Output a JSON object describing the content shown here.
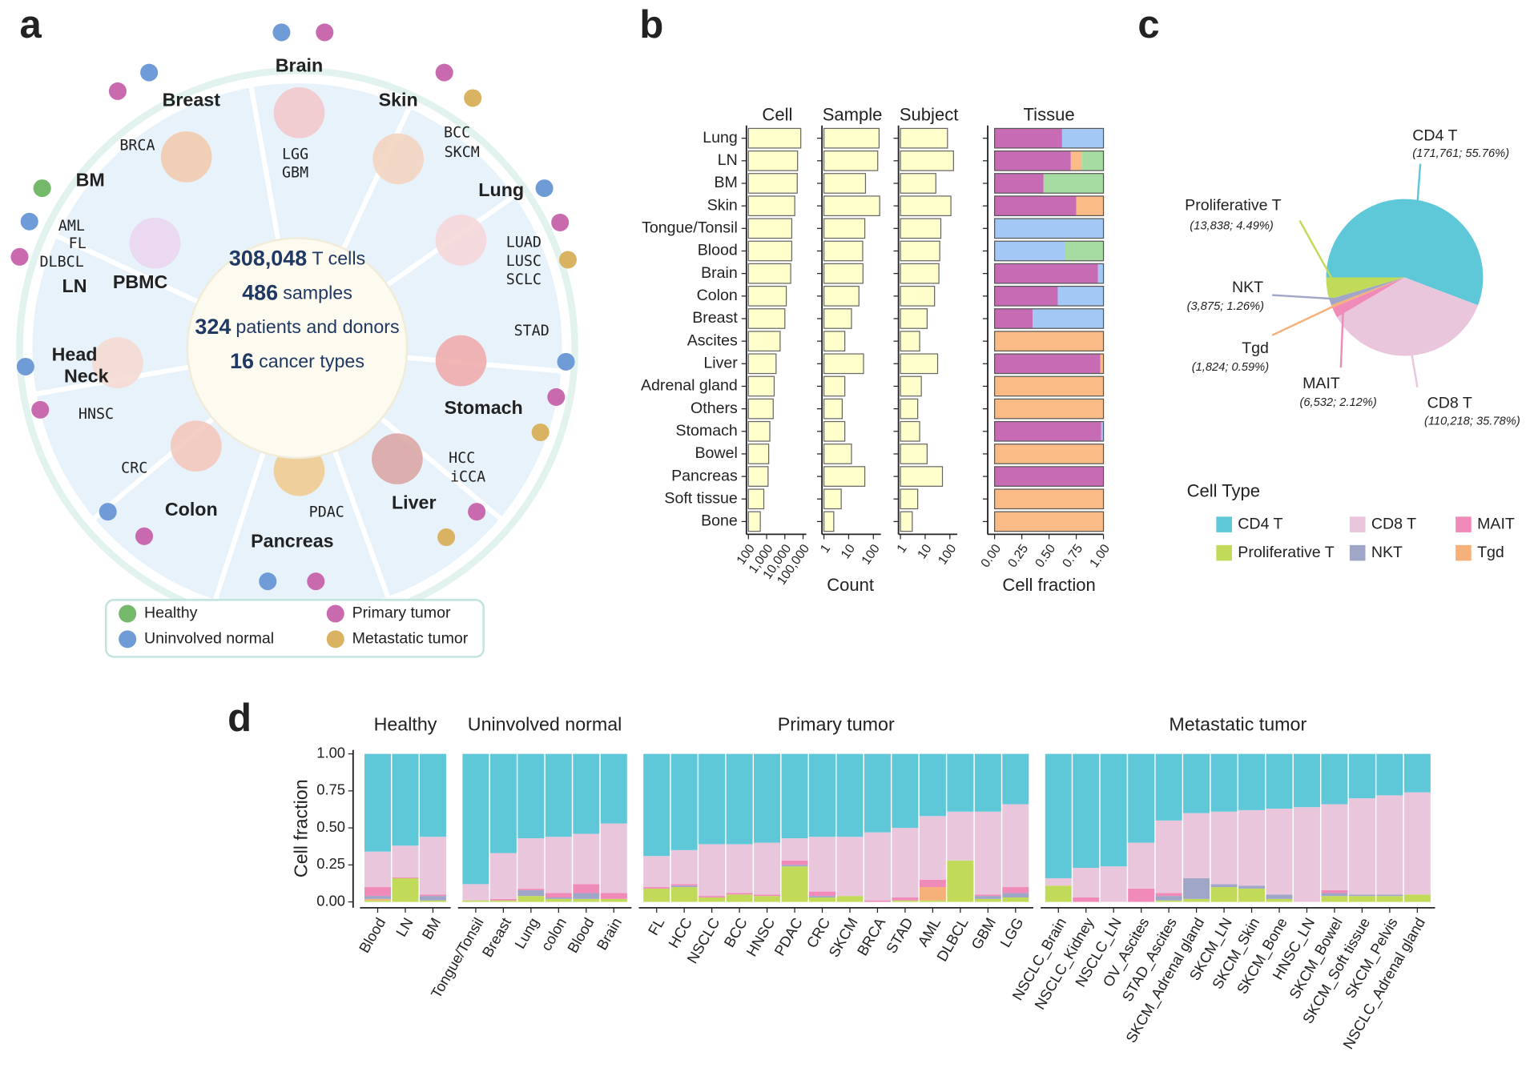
{
  "panel_labels": [
    "a",
    "b",
    "c",
    "d"
  ],
  "diagram": {
    "center_lines": [
      {
        "bold": "308,048",
        "text": "T cells"
      },
      {
        "bold": "486",
        "text": "samples"
      },
      {
        "bold": "324",
        "text": "patients and donors"
      },
      {
        "bold": "16",
        "text": "cancer types"
      }
    ],
    "segments": [
      {
        "names": [
          "Brain"
        ],
        "codes": [
          "LGG",
          "GBM"
        ]
      },
      {
        "names": [
          "Skin"
        ],
        "codes": [
          "BCC",
          "SKCM"
        ]
      },
      {
        "names": [
          "Lung"
        ],
        "codes": [
          "LUAD",
          "LUSC",
          "SCLC"
        ]
      },
      {
        "names": [
          "Stomach"
        ],
        "codes": [
          "STAD"
        ]
      },
      {
        "names": [
          "Liver"
        ],
        "codes": [
          "HCC",
          "iCCA"
        ]
      },
      {
        "names": [
          "Pancreas"
        ],
        "codes": [
          "PDAC"
        ]
      },
      {
        "names": [
          "Colon"
        ],
        "codes": [
          "CRC"
        ]
      },
      {
        "names": [
          "Head",
          "Neck"
        ],
        "codes": [
          "HNSC"
        ]
      },
      {
        "names": [
          "BM",
          "PBMC",
          "LN"
        ],
        "codes": [
          "AML",
          "FL",
          "DLBCL"
        ]
      },
      {
        "names": [
          "Breast"
        ],
        "codes": [
          "BRCA"
        ]
      }
    ]
  },
  "chart_data": [
    {
      "type": "bar",
      "title": "Cell",
      "categories": [
        "Lung",
        "LN",
        "BM",
        "Skin",
        "Tongue/Tonsil",
        "Blood",
        "Brain",
        "Colon",
        "Breast",
        "Ascites",
        "Liver",
        "Adrenal gland",
        "Others",
        "Stomach",
        "Bowel",
        "Pancreas",
        "Soft tissue",
        "Bone"
      ],
      "values": [
        75000,
        50000,
        48000,
        35000,
        24000,
        24000,
        21000,
        12000,
        10000,
        5500,
        3300,
        2600,
        2300,
        1500,
        1300,
        1200,
        700,
        450
      ],
      "log_x": true,
      "xlim": [
        100,
        150000
      ],
      "xticks": [
        100,
        {
          "value": 1000,
          "label": "1,000"
        },
        {
          "value": 10000,
          "label": "10,000"
        },
        {
          "value": 100000,
          "label": "100,000"
        }
      ],
      "color": "#ffffcc"
    },
    {
      "type": "bar",
      "title": "Sample",
      "x_label": "Count",
      "values": [
        170,
        150,
        48,
        180,
        45,
        37,
        38,
        26,
        13,
        7,
        40,
        7,
        5.5,
        7,
        13,
        45,
        5,
        2.5
      ],
      "log_x": true,
      "xlim": [
        1,
        200
      ],
      "xticks": [
        1,
        10,
        100
      ],
      "color": "#ffffcc"
    },
    {
      "type": "bar",
      "title": "Subject",
      "values": [
        80,
        140,
        27,
        110,
        43,
        39,
        36,
        24,
        12,
        6,
        32,
        7,
        5,
        6,
        12,
        50,
        5,
        3
      ],
      "log_x": true,
      "xlim": [
        1,
        200
      ],
      "xticks": [
        1,
        10,
        100
      ],
      "color": "#ffffcc"
    },
    {
      "type": "stacked_bar",
      "title": "Tissue",
      "x_label": "Cell fraction",
      "xlim": [
        0,
        1
      ],
      "xticks": [
        {
          "value": 0,
          "label": "0.00"
        },
        {
          "value": 0.25,
          "label": "0.25"
        },
        {
          "value": 0.5,
          "label": "0.50"
        },
        {
          "value": 0.75,
          "label": "0.75"
        },
        {
          "value": 1,
          "label": "1.00"
        }
      ],
      "series": [
        {
          "name": "Primary tumor",
          "color": "#c86bb5",
          "legend_color": "#c96aae",
          "values": [
            0.62,
            0.7,
            0.45,
            0.75,
            0,
            0,
            0.95,
            0.58,
            0.35,
            0,
            0.97,
            0,
            0,
            0.98,
            0,
            1,
            0,
            0
          ]
        },
        {
          "name": "Metastatic tumor",
          "color": "#fbbb86",
          "legend_color": "#d9b362",
          "values": [
            0,
            0.1,
            0,
            0.25,
            0,
            0,
            0,
            0,
            0,
            1,
            0.03,
            1,
            1,
            0,
            1,
            0,
            1,
            1
          ]
        },
        {
          "name": "Uninvolved normal",
          "color": "#a3c8f5",
          "legend_color": "#6f9bd6",
          "values": [
            0.38,
            0,
            0,
            0,
            1,
            0.65,
            0.05,
            0.42,
            0.65,
            0,
            0,
            0,
            0,
            0.02,
            0,
            0,
            0,
            0
          ]
        },
        {
          "name": "Healthy",
          "color": "#a6dca2",
          "legend_color": "#74b86a",
          "values": [
            0,
            0.2,
            0.55,
            0,
            0,
            0.35,
            0,
            0,
            0,
            0,
            0,
            0,
            0,
            0,
            0,
            0,
            0,
            0
          ]
        }
      ]
    },
    {
      "type": "pie",
      "legend_title": "Cell Type",
      "categories": [
        "CD4 T",
        "CD8 T",
        "MAIT",
        "Tgd",
        "NKT",
        "Proliferative T"
      ],
      "values": [
        55.76,
        35.78,
        2.12,
        0.59,
        1.26,
        4.49
      ],
      "value_labels": [
        "(171,761; 55.76%)",
        "(110,218; 35.78%)",
        "(6,532; 2.12%)",
        "(1,824; 0.59%)",
        "(3,875; 1.26%)",
        "(13,838; 4.49%)"
      ],
      "colors": [
        "#5ec8d8",
        "#eac6dd",
        "#f08ab8",
        "#f6b07a",
        "#9fa6c8",
        "#c2da5a"
      ]
    },
    {
      "type": "stacked_bar",
      "y_label": "Cell fraction",
      "ylim": [
        0,
        1
      ],
      "yticks": [
        {
          "value": 0,
          "label": "0.00"
        },
        {
          "value": 0.25,
          "label": "0.25"
        },
        {
          "value": 0.5,
          "label": "0.50"
        },
        {
          "value": 0.75,
          "label": "0.75"
        },
        {
          "value": 1,
          "label": "1.00"
        }
      ],
      "facets": [
        {
          "title": "Healthy",
          "categories": [
            "Blood",
            "LN",
            "BM"
          ],
          "values": [
            [
              0.66,
              0.24,
              0.06,
              0.01,
              0.02,
              0.01
            ],
            [
              0.62,
              0.215,
              0.005,
              0,
              0,
              0.16
            ],
            [
              0.56,
              0.39,
              0.01,
              0,
              0.03,
              0.01
            ]
          ]
        },
        {
          "title": "Uninvolved normal",
          "categories": [
            "Tongue/Tonsil",
            "Breast",
            "Lung",
            "colon",
            "Blood",
            "Brain"
          ],
          "values": [
            [
              0.88,
              0.11,
              0,
              0,
              0,
              0.01
            ],
            [
              0.67,
              0.31,
              0.01,
              0,
              0,
              0.01
            ],
            [
              0.57,
              0.34,
              0.01,
              0,
              0.04,
              0.04
            ],
            [
              0.56,
              0.38,
              0.03,
              0,
              0.01,
              0.02
            ],
            [
              0.54,
              0.34,
              0.06,
              0,
              0.04,
              0.02
            ],
            [
              0.47,
              0.47,
              0.04,
              0,
              0,
              0.02
            ]
          ]
        },
        {
          "title": "Primary tumor",
          "categories": [
            "FL",
            "HCC",
            "NSCLC",
            "BCC",
            "HNSC",
            "PDAC",
            "CRC",
            "SKCM",
            "BRCA",
            "STAD",
            "AML",
            "DLBCL",
            "GBM",
            "LGG"
          ],
          "values": [
            [
              0.69,
              0.21,
              0.01,
              0,
              0,
              0.09
            ],
            [
              0.65,
              0.23,
              0.01,
              0,
              0.01,
              0.1
            ],
            [
              0.61,
              0.35,
              0.01,
              0,
              0,
              0.03
            ],
            [
              0.61,
              0.33,
              0.01,
              0,
              0,
              0.05
            ],
            [
              0.6,
              0.35,
              0.01,
              0,
              0,
              0.04
            ],
            [
              0.57,
              0.15,
              0.03,
              0,
              0.01,
              0.24
            ],
            [
              0.56,
              0.37,
              0.03,
              0,
              0.01,
              0.03
            ],
            [
              0.56,
              0.4,
              0,
              0,
              0,
              0.04
            ],
            [
              0.53,
              0.46,
              0.01,
              0,
              0,
              0
            ],
            [
              0.5,
              0.47,
              0.02,
              0,
              0,
              0.01
            ],
            [
              0.42,
              0.43,
              0.05,
              0.09,
              0,
              0.01
            ],
            [
              0.39,
              0.33,
              0,
              0,
              0,
              0.28
            ],
            [
              0.39,
              0.56,
              0.01,
              0,
              0.02,
              0.02
            ],
            [
              0.34,
              0.56,
              0.04,
              0,
              0.03,
              0.03
            ]
          ]
        },
        {
          "title": "Metastatic tumor",
          "categories": [
            "NSCLC_Brain",
            "NSCLC_Kidney",
            "NSCLC_LN",
            "OV_Ascites",
            "STAD_Ascites",
            "SKCM_Adrenal gland",
            "SKCM_LN",
            "SKCM_Skin",
            "SKCM_Bone",
            "HNSC_LN",
            "SKCM_Bowel",
            "SKCM_Soft tissue",
            "SKCM_Pelvis",
            "NSCLC_Adrenal gland"
          ],
          "values": [
            [
              0.84,
              0.05,
              0,
              0,
              0,
              0.11
            ],
            [
              0.77,
              0.2,
              0.03,
              0,
              0,
              0
            ],
            [
              0.76,
              0.24,
              0,
              0,
              0,
              0
            ],
            [
              0.6,
              0.31,
              0.09,
              0,
              0,
              0
            ],
            [
              0.45,
              0.49,
              0.02,
              0,
              0.03,
              0.01
            ],
            [
              0.4,
              0.44,
              0,
              0,
              0.14,
              0.02
            ],
            [
              0.39,
              0.49,
              0,
              0,
              0.02,
              0.1
            ],
            [
              0.38,
              0.51,
              0,
              0,
              0.02,
              0.09
            ],
            [
              0.37,
              0.58,
              0,
              0,
              0.03,
              0.02
            ],
            [
              0.36,
              0.64,
              0,
              0,
              0,
              0
            ],
            [
              0.34,
              0.58,
              0.02,
              0,
              0.02,
              0.04
            ],
            [
              0.3,
              0.65,
              0,
              0,
              0.01,
              0.04
            ],
            [
              0.28,
              0.67,
              0,
              0,
              0.01,
              0.04
            ],
            [
              0.26,
              0.69,
              0,
              0,
              0,
              0.05
            ]
          ]
        }
      ]
    }
  ]
}
